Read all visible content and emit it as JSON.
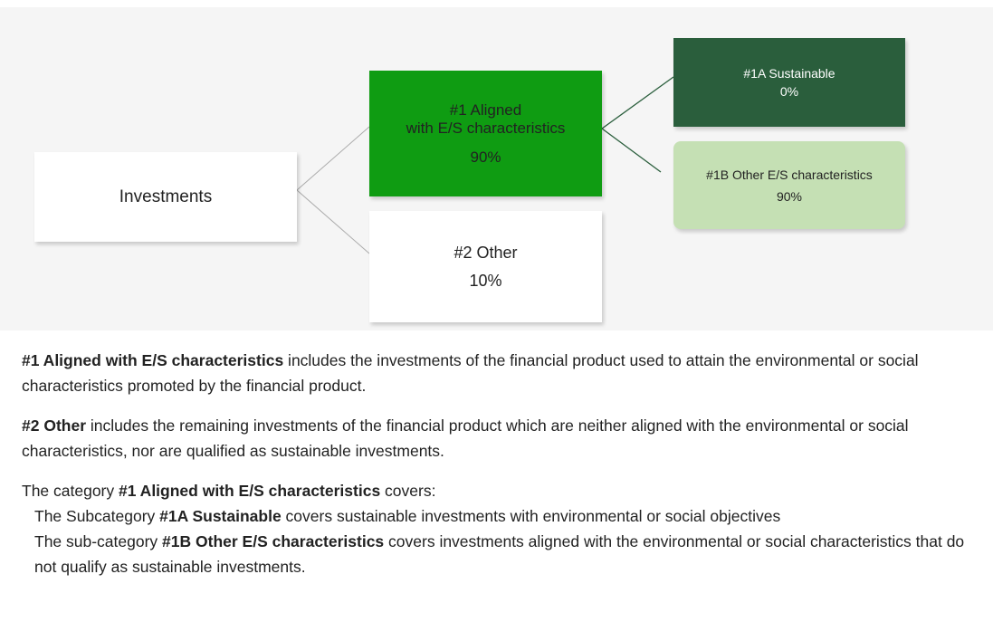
{
  "diagram": {
    "nodes": [
      {
        "id": "investments",
        "lines": [
          "Investments"
        ]
      },
      {
        "id": "aligned",
        "lines": [
          "#1 Aligned",
          "with E/S characteristics",
          "90%"
        ]
      },
      {
        "id": "other",
        "lines": [
          "#2 Other",
          "10%"
        ]
      },
      {
        "id": "sustainable",
        "lines": [
          "#1A Sustainable",
          "0%"
        ]
      },
      {
        "id": "other-es",
        "lines": [
          "#1B Other E/S characteristics",
          "90%"
        ]
      }
    ]
  },
  "paragraphs": [
    [
      {
        "text": "#1 Aligned with E/S characteristics",
        "bold": true
      },
      {
        "text": " includes the investments of the financial product used to attain the environmental or social characteristics promoted by the financial product.",
        "bold": false
      }
    ],
    [
      {
        "text": "#2 Other",
        "bold": true
      },
      {
        "text": " includes the remaining investments of the financial product which are neither aligned with the environmental or social characteristics, nor are qualified as sustainable investments.",
        "bold": false
      }
    ],
    [
      {
        "text": "The category ",
        "bold": false
      },
      {
        "text": "#1 Aligned with E/S characteristics",
        "bold": true
      },
      {
        "text": " covers:",
        "bold": false
      }
    ]
  ],
  "sub_items": [
    [
      {
        "text": "The Subcategory ",
        "bold": false
      },
      {
        "text": "#1A Sustainable",
        "bold": true
      },
      {
        "text": " covers sustainable investments with environmental or social objectives",
        "bold": false
      }
    ],
    [
      {
        "text": "The sub-category ",
        "bold": false
      },
      {
        "text": "#1B Other E/S characteristics",
        "bold": true
      },
      {
        "text": " covers investments aligned with the environmental or social characteristics that do not qualify as sustainable investments.",
        "bold": false
      }
    ]
  ]
}
